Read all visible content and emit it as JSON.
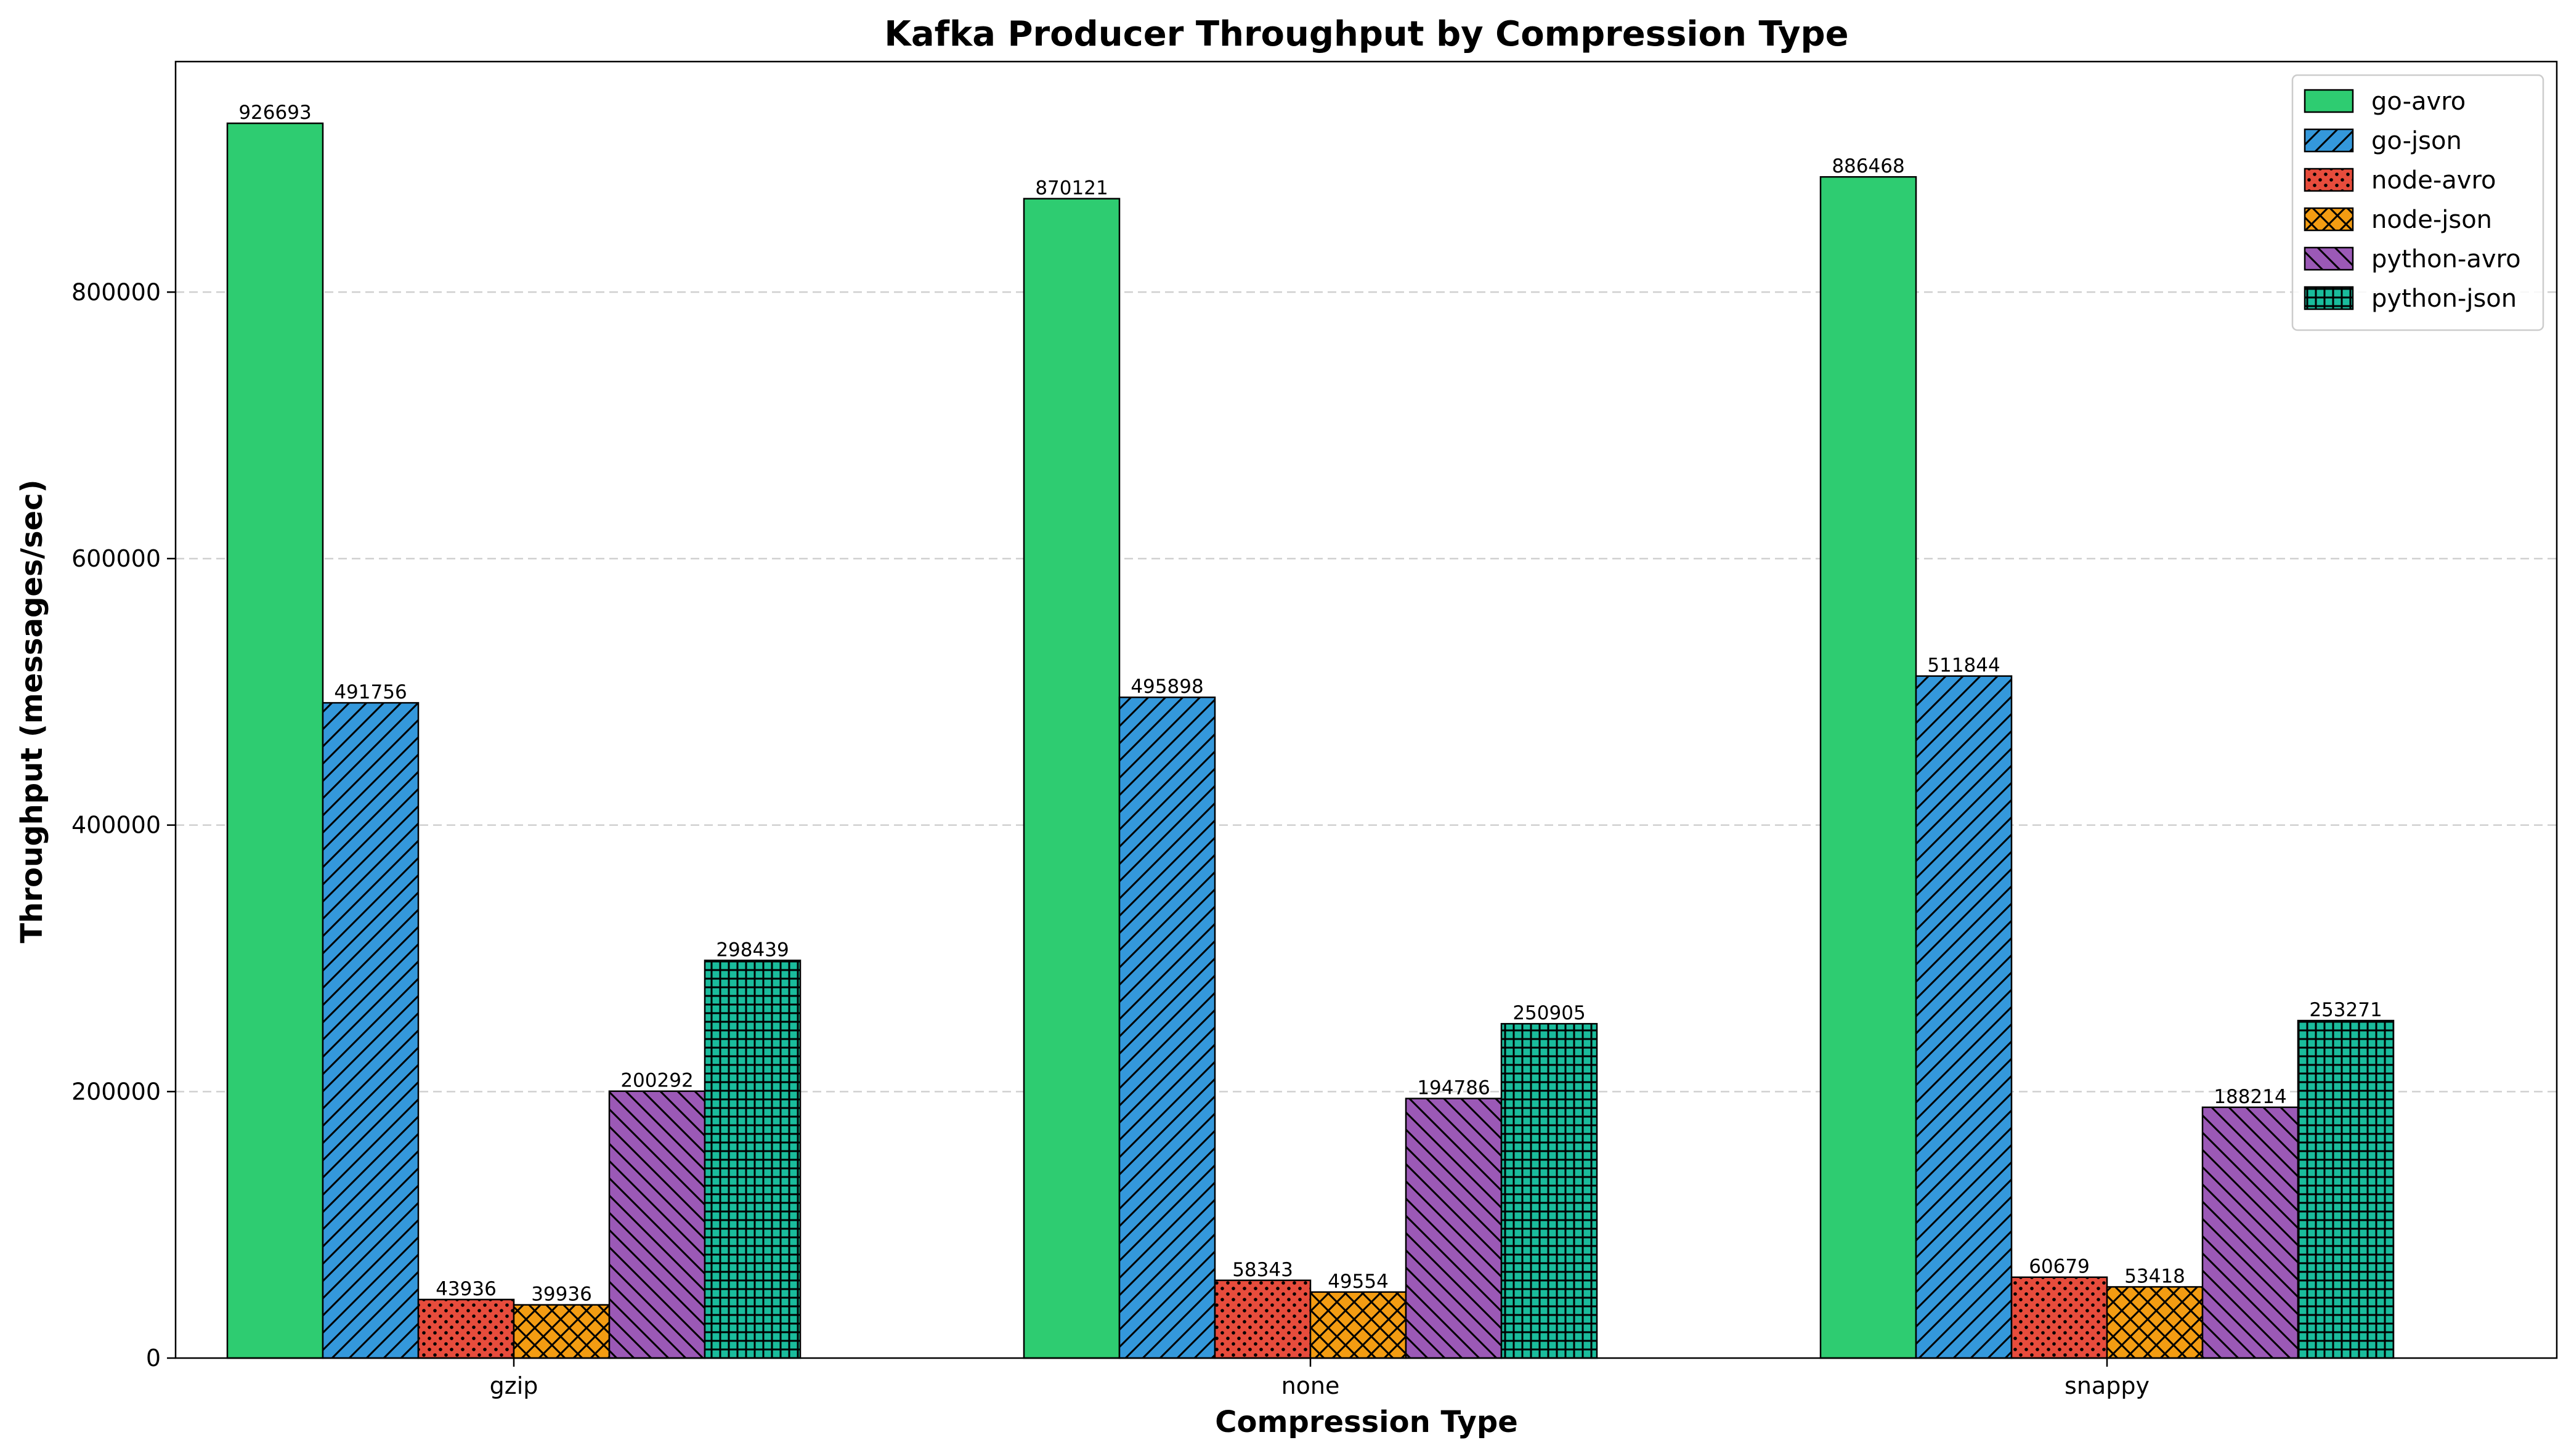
{
  "chart_data": {
    "type": "bar",
    "title": "Kafka Producer Throughput by Compression Type",
    "xlabel": "Compression Type",
    "ylabel": "Throughput (messages/sec)",
    "categories": [
      "gzip",
      "none",
      "snappy"
    ],
    "ylim": [
      0,
      973000
    ],
    "yticks": [
      0,
      200000,
      400000,
      600000,
      800000
    ],
    "grid": "y-dashed",
    "legend_position": "top-right",
    "series": [
      {
        "name": "go-avro",
        "color": "#2ecc71",
        "hatch": "none",
        "values": [
          926693,
          870121,
          886468
        ]
      },
      {
        "name": "go-json",
        "color": "#3498db",
        "hatch": "diagonal",
        "values": [
          491756,
          495898,
          511844
        ]
      },
      {
        "name": "node-avro",
        "color": "#e74c3c",
        "hatch": "dots",
        "values": [
          43936,
          58343,
          60679
        ]
      },
      {
        "name": "node-json",
        "color": "#f39c12",
        "hatch": "crosshatch",
        "values": [
          39936,
          49554,
          53418
        ]
      },
      {
        "name": "python-avro",
        "color": "#9b59b6",
        "hatch": "backdiagonal",
        "values": [
          200292,
          194786,
          188214
        ]
      },
      {
        "name": "python-json",
        "color": "#1abc9c",
        "hatch": "grid",
        "values": [
          298439,
          250905,
          253271
        ]
      }
    ]
  }
}
